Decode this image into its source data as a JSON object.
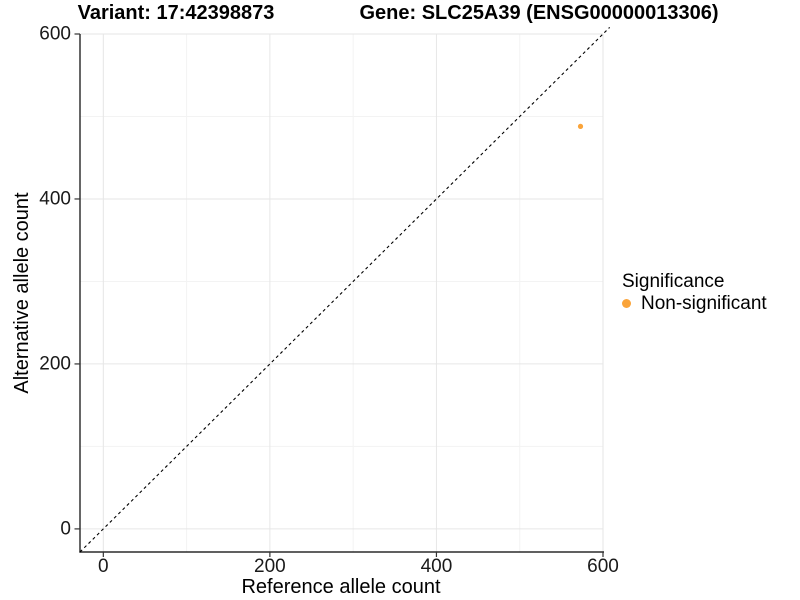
{
  "colors": {
    "point_orange": "#FAA43A",
    "grid_major": "#E6E6E6",
    "grid_minor": "#F3F3F3",
    "axis_line": "#000000",
    "tick_mark": "#333333",
    "reference_line": "#000000"
  },
  "chart_data": {
    "type": "scatter",
    "title_left": "Variant: 17:42398873",
    "title_right": "Gene: SLC25A39 (ENSG00000013306)",
    "xlabel": "Reference allele count",
    "ylabel": "Alternative allele count",
    "x_axis": {
      "ticks": [
        0,
        200,
        400,
        600
      ],
      "tick_labels": [
        "0",
        "200",
        "400",
        "600"
      ],
      "minor_ticks": [
        100,
        300,
        500
      ],
      "range": [
        -28,
        600
      ]
    },
    "y_axis": {
      "ticks": [
        0,
        200,
        400,
        600
      ],
      "tick_labels": [
        "0",
        "200",
        "400",
        "600"
      ],
      "minor_ticks": [
        100,
        300,
        500
      ],
      "range": [
        -28,
        600
      ]
    },
    "series": [
      {
        "name": "Non-significant",
        "color": "#FAA43A",
        "points": [
          {
            "x": 573,
            "y": 488
          }
        ]
      }
    ],
    "reference_line": {
      "type": "identity y = x",
      "style": "dashed",
      "color": "#000000"
    },
    "grid": "major and minor light grey gridlines on white background",
    "legend": {
      "title": "Significance",
      "position": "right"
    }
  }
}
